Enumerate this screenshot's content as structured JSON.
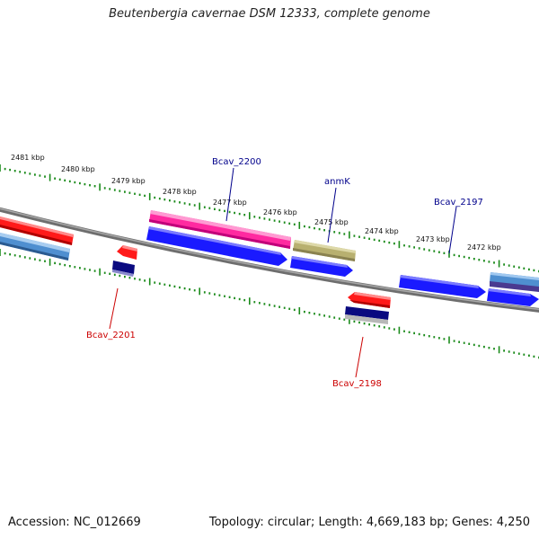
{
  "title": "Beutenbergia cavernae DSM 12333, complete genome",
  "footer": {
    "accession": "Accession: NC_012669",
    "stats": "Topology: circular; Length: 4,669,183 bp; Genes: 4,250"
  },
  "colors": {
    "forward_label": "#00008b",
    "reverse_label": "#cc0000",
    "tick": "#1a8a1a",
    "backbone": "#808080",
    "gene_red": "#ff1a1a",
    "gene_pink": "#ff2aa0",
    "gene_blue": "#1a1aff",
    "gene_steel": "#4f8fd0",
    "gene_navy": "#0a0a80",
    "gene_olive": "#b8b070",
    "gene_gray": "#b8b8b8",
    "gene_purple": "#4a3a90"
  },
  "kbp_labels": [
    "2481 kbp",
    "2480 kbp",
    "2479 kbp",
    "2478 kbp",
    "2477 kbp",
    "2476 kbp",
    "2475 kbp",
    "2474 kbp",
    "2473 kbp",
    "2472 kbp"
  ],
  "gene_labels": {
    "bcav_2200": "Bcav_2200",
    "anmk": "anmK",
    "bcav_2197": "Bcav_2197",
    "bcav_2201": "Bcav_2201",
    "bcav_2198": "Bcav_2198"
  }
}
